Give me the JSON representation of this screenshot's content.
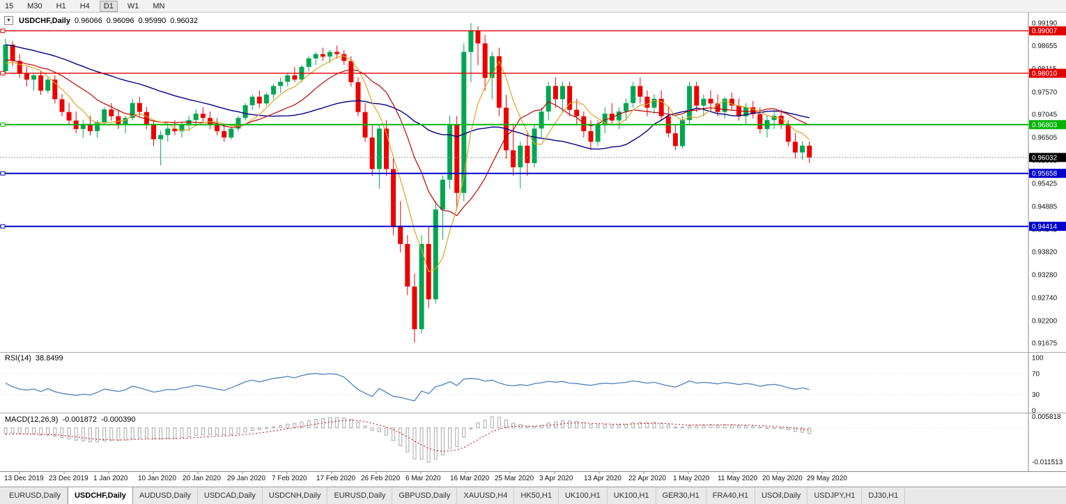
{
  "toolbar": {
    "timeframes": [
      "15",
      "M30",
      "H1",
      "H4",
      "D1",
      "W1",
      "MN"
    ],
    "active": "D1"
  },
  "chart": {
    "title": {
      "symbol_period": "USDCHF,Daily",
      "open": "0.96066",
      "high": "0.96096",
      "low": "0.95990",
      "close": "0.96032"
    },
    "dropdown_icon": "▼",
    "price_axis": [
      "0.99190",
      "0.98655",
      "0.98115",
      "0.97570",
      "0.97045",
      "0.96505",
      "0.95965",
      "0.95425",
      "0.94885",
      "0.94345",
      "0.93820",
      "0.93280",
      "0.92740",
      "0.92200",
      "0.91675"
    ],
    "levels": [
      {
        "value": 0.99007,
        "label": "0.99007",
        "color": "#e00000",
        "width": 1.4
      },
      {
        "value": 0.9801,
        "label": "0.98010",
        "color": "#e00000",
        "width": 1.4
      },
      {
        "value": 0.96803,
        "label": "0.96803",
        "color": "#00b400",
        "width": 2
      },
      {
        "value": 0.95658,
        "label": "0.95658",
        "color": "#0000cc",
        "width": 2
      },
      {
        "value": 0.94414,
        "label": "0.94414",
        "color": "#0000cc",
        "width": 2
      }
    ],
    "bid": {
      "value": 0.96032,
      "label": "0.96032",
      "color": "#000000"
    },
    "colors": {
      "up": "#00a651",
      "down": "#ec0000",
      "ma_slow": "#000080",
      "ma_mid": "#c00000",
      "ma_fast": "#daa520",
      "rsi": "#4f81bd",
      "macd_hist": "#a8a8a8",
      "macd_signal": "#d00000"
    }
  },
  "rsi": {
    "name": "RSI(14)",
    "value": "38.8499",
    "axis": [
      "100",
      "70",
      "30",
      "0"
    ]
  },
  "macd": {
    "name": "MACD(12,26,9)",
    "value_main": "-0.001872",
    "value_signal": "-0.000390",
    "axis_top": "0.005818",
    "axis_bottom": "-0.011513"
  },
  "tabs": {
    "items": [
      "EURUSD,Daily",
      "USDCHF,Daily",
      "AUDUSD,Daily",
      "USDCAD,Daily",
      "USDCNH,Daily",
      "EURUSD,Daily",
      "GBPUSD,Daily",
      "XAUUSD,H4",
      "HK50,H1",
      "UK100,H1",
      "UK100,H1",
      "GER30,H1",
      "FRA40,H1",
      "USOil,Daily",
      "USDJPY,H1",
      "DJ30,H1"
    ],
    "active_index": 1
  },
  "chart_data": {
    "type": "candlestick",
    "symbol": "USDCHF",
    "timeframe": "Daily",
    "y_range": [
      0.91675,
      0.9919
    ],
    "y_axis_ticks": [
      "0.99190",
      "0.98655",
      "0.98115",
      "0.97570",
      "0.97045",
      "0.96505",
      "0.95965",
      "0.95425",
      "0.94885",
      "0.94345",
      "0.93820",
      "0.93280",
      "0.92740",
      "0.92200",
      "0.91675"
    ],
    "x_labels": [
      "13 Dec 2019",
      "23 Dec 2019",
      "1 Jan 2020",
      "10 Jan 2020",
      "20 Jan 2020",
      "29 Jan 2020",
      "7 Feb 2020",
      "17 Feb 2020",
      "26 Feb 2020",
      "6 Mar 2020",
      "16 Mar 2020",
      "25 Mar 2020",
      "3 Apr 2020",
      "13 Apr 2020",
      "22 Apr 2020",
      "1 May 2020",
      "11 May 2020",
      "20 May 2020",
      "29 May 2020"
    ],
    "horizontal_levels": [
      0.99007,
      0.9801,
      0.96803,
      0.95658,
      0.94414
    ],
    "current_bid": 0.96032,
    "indicators": [
      {
        "name": "RSI",
        "period": 14,
        "current": 38.8499,
        "range": [
          0,
          100
        ],
        "levels": [
          30,
          70
        ]
      },
      {
        "name": "MACD",
        "params": [
          12,
          26,
          9
        ],
        "current_macd": -0.001872,
        "current_signal": -0.00039,
        "axis_max": 0.005818,
        "axis_min": -0.011513
      }
    ],
    "ohlc": [
      [
        0.9806,
        0.9882,
        0.98,
        0.9868
      ],
      [
        0.9868,
        0.9876,
        0.9818,
        0.983
      ],
      [
        0.983,
        0.9846,
        0.979,
        0.98
      ],
      [
        0.98,
        0.9816,
        0.977,
        0.9786
      ],
      [
        0.9786,
        0.9802,
        0.976,
        0.9796
      ],
      [
        0.9796,
        0.9806,
        0.975,
        0.976
      ],
      [
        0.976,
        0.9791,
        0.9754,
        0.9786
      ],
      [
        0.9786,
        0.9796,
        0.973,
        0.974
      ],
      [
        0.974,
        0.9752,
        0.97,
        0.971
      ],
      [
        0.971,
        0.9731,
        0.9681,
        0.969
      ],
      [
        0.969,
        0.9711,
        0.966,
        0.967
      ],
      [
        0.967,
        0.9691,
        0.965,
        0.9681
      ],
      [
        0.9681,
        0.9701,
        0.9655,
        0.9665
      ],
      [
        0.9665,
        0.9691,
        0.965,
        0.9686
      ],
      [
        0.9686,
        0.9721,
        0.968,
        0.9716
      ],
      [
        0.9716,
        0.9731,
        0.969,
        0.97
      ],
      [
        0.97,
        0.9716,
        0.967,
        0.9681
      ],
      [
        0.9681,
        0.9701,
        0.966,
        0.9696
      ],
      [
        0.9696,
        0.9741,
        0.969,
        0.9731
      ],
      [
        0.9731,
        0.9746,
        0.97,
        0.971
      ],
      [
        0.971,
        0.9721,
        0.967,
        0.9681
      ],
      [
        0.9681,
        0.9691,
        0.963,
        0.9646
      ],
      [
        0.9646,
        0.9666,
        0.9585,
        0.9656
      ],
      [
        0.9656,
        0.9681,
        0.964,
        0.9671
      ],
      [
        0.9671,
        0.9691,
        0.9655,
        0.9665
      ],
      [
        0.9665,
        0.9686,
        0.965,
        0.9681
      ],
      [
        0.9681,
        0.9701,
        0.9665,
        0.9691
      ],
      [
        0.9691,
        0.9716,
        0.968,
        0.9706
      ],
      [
        0.9706,
        0.9721,
        0.9685,
        0.9696
      ],
      [
        0.9696,
        0.9711,
        0.967,
        0.9681
      ],
      [
        0.9681,
        0.9696,
        0.9655,
        0.9665
      ],
      [
        0.9665,
        0.9681,
        0.964,
        0.965
      ],
      [
        0.965,
        0.9676,
        0.9645,
        0.9671
      ],
      [
        0.9671,
        0.9701,
        0.9665,
        0.9696
      ],
      [
        0.9696,
        0.9731,
        0.969,
        0.9726
      ],
      [
        0.9726,
        0.9751,
        0.9715,
        0.9746
      ],
      [
        0.9746,
        0.9761,
        0.972,
        0.973
      ],
      [
        0.973,
        0.9756,
        0.9725,
        0.9751
      ],
      [
        0.9751,
        0.9776,
        0.974,
        0.9771
      ],
      [
        0.9771,
        0.9791,
        0.9755,
        0.9781
      ],
      [
        0.9781,
        0.9801,
        0.977,
        0.9796
      ],
      [
        0.9796,
        0.9816,
        0.978,
        0.9786
      ],
      [
        0.9786,
        0.9821,
        0.978,
        0.9816
      ],
      [
        0.9816,
        0.9841,
        0.9805,
        0.9836
      ],
      [
        0.9836,
        0.9851,
        0.982,
        0.9846
      ],
      [
        0.9846,
        0.9861,
        0.983,
        0.984
      ],
      [
        0.984,
        0.9856,
        0.9825,
        0.9851
      ],
      [
        0.9851,
        0.9866,
        0.9835,
        0.9846
      ],
      [
        0.9846,
        0.9856,
        0.982,
        0.983
      ],
      [
        0.983,
        0.9841,
        0.977,
        0.978
      ],
      [
        0.978,
        0.9791,
        0.97,
        0.971
      ],
      [
        0.971,
        0.9731,
        0.964,
        0.965
      ],
      [
        0.965,
        0.9681,
        0.956,
        0.9576
      ],
      [
        0.9576,
        0.9681,
        0.953,
        0.9671
      ],
      [
        0.9671,
        0.9691,
        0.956,
        0.9576
      ],
      [
        0.9576,
        0.9601,
        0.942,
        0.944
      ],
      [
        0.944,
        0.9501,
        0.938,
        0.94
      ],
      [
        0.94,
        0.9421,
        0.928,
        0.93
      ],
      [
        0.93,
        0.9331,
        0.9168,
        0.92
      ],
      [
        0.92,
        0.9421,
        0.919,
        0.94
      ],
      [
        0.94,
        0.9441,
        0.925,
        0.927
      ],
      [
        0.927,
        0.9501,
        0.926,
        0.9481
      ],
      [
        0.9481,
        0.9561,
        0.941,
        0.9551
      ],
      [
        0.9551,
        0.9701,
        0.953,
        0.9681
      ],
      [
        0.9681,
        0.9701,
        0.948,
        0.952
      ],
      [
        0.952,
        0.9871,
        0.95,
        0.9851
      ],
      [
        0.9851,
        0.9919,
        0.978,
        0.9901
      ],
      [
        0.9901,
        0.9911,
        0.982,
        0.9871
      ],
      [
        0.9871,
        0.9891,
        0.976,
        0.979
      ],
      [
        0.979,
        0.9851,
        0.974,
        0.9841
      ],
      [
        0.9841,
        0.9861,
        0.97,
        0.972
      ],
      [
        0.972,
        0.9751,
        0.96,
        0.962
      ],
      [
        0.962,
        0.9681,
        0.956,
        0.958
      ],
      [
        0.958,
        0.9641,
        0.953,
        0.9631
      ],
      [
        0.9631,
        0.9661,
        0.956,
        0.959
      ],
      [
        0.959,
        0.9681,
        0.958,
        0.9671
      ],
      [
        0.9671,
        0.9721,
        0.965,
        0.9711
      ],
      [
        0.9711,
        0.9781,
        0.969,
        0.9771
      ],
      [
        0.9771,
        0.9791,
        0.972,
        0.974
      ],
      [
        0.974,
        0.9781,
        0.971,
        0.9771
      ],
      [
        0.9771,
        0.9781,
        0.97,
        0.9715
      ],
      [
        0.9715,
        0.9741,
        0.968,
        0.97
      ],
      [
        0.97,
        0.9711,
        0.965,
        0.9665
      ],
      [
        0.9665,
        0.9691,
        0.962,
        0.964
      ],
      [
        0.964,
        0.9691,
        0.963,
        0.9681
      ],
      [
        0.9681,
        0.9721,
        0.966,
        0.9706
      ],
      [
        0.9706,
        0.9731,
        0.968,
        0.969
      ],
      [
        0.969,
        0.9721,
        0.967,
        0.9711
      ],
      [
        0.9711,
        0.9741,
        0.969,
        0.9731
      ],
      [
        0.9731,
        0.9781,
        0.972,
        0.9771
      ],
      [
        0.9771,
        0.9791,
        0.973,
        0.9746
      ],
      [
        0.9746,
        0.9761,
        0.97,
        0.972
      ],
      [
        0.972,
        0.9751,
        0.9705,
        0.9741
      ],
      [
        0.9741,
        0.9761,
        0.969,
        0.97
      ],
      [
        0.97,
        0.9721,
        0.965,
        0.966
      ],
      [
        0.966,
        0.9681,
        0.962,
        0.963
      ],
      [
        0.963,
        0.9701,
        0.9625,
        0.9691
      ],
      [
        0.9691,
        0.9781,
        0.968,
        0.9771
      ],
      [
        0.9771,
        0.9781,
        0.971,
        0.9725
      ],
      [
        0.9725,
        0.9751,
        0.97,
        0.9741
      ],
      [
        0.9741,
        0.9761,
        0.9715,
        0.973
      ],
      [
        0.973,
        0.9751,
        0.97,
        0.971
      ],
      [
        0.971,
        0.9746,
        0.9695,
        0.9741
      ],
      [
        0.9741,
        0.9756,
        0.9715,
        0.9725
      ],
      [
        0.9725,
        0.9741,
        0.969,
        0.97
      ],
      [
        0.97,
        0.9731,
        0.968,
        0.9721
      ],
      [
        0.9721,
        0.9736,
        0.9695,
        0.9705
      ],
      [
        0.9705,
        0.9721,
        0.966,
        0.967
      ],
      [
        0.967,
        0.9701,
        0.965,
        0.9691
      ],
      [
        0.9691,
        0.9711,
        0.967,
        0.9701
      ],
      [
        0.9701,
        0.9716,
        0.967,
        0.9681
      ],
      [
        0.9681,
        0.9691,
        0.963,
        0.964
      ],
      [
        0.964,
        0.9661,
        0.96,
        0.9615
      ],
      [
        0.9615,
        0.9641,
        0.9598,
        0.9631
      ],
      [
        0.9631,
        0.9641,
        0.959,
        0.9603
      ]
    ]
  }
}
